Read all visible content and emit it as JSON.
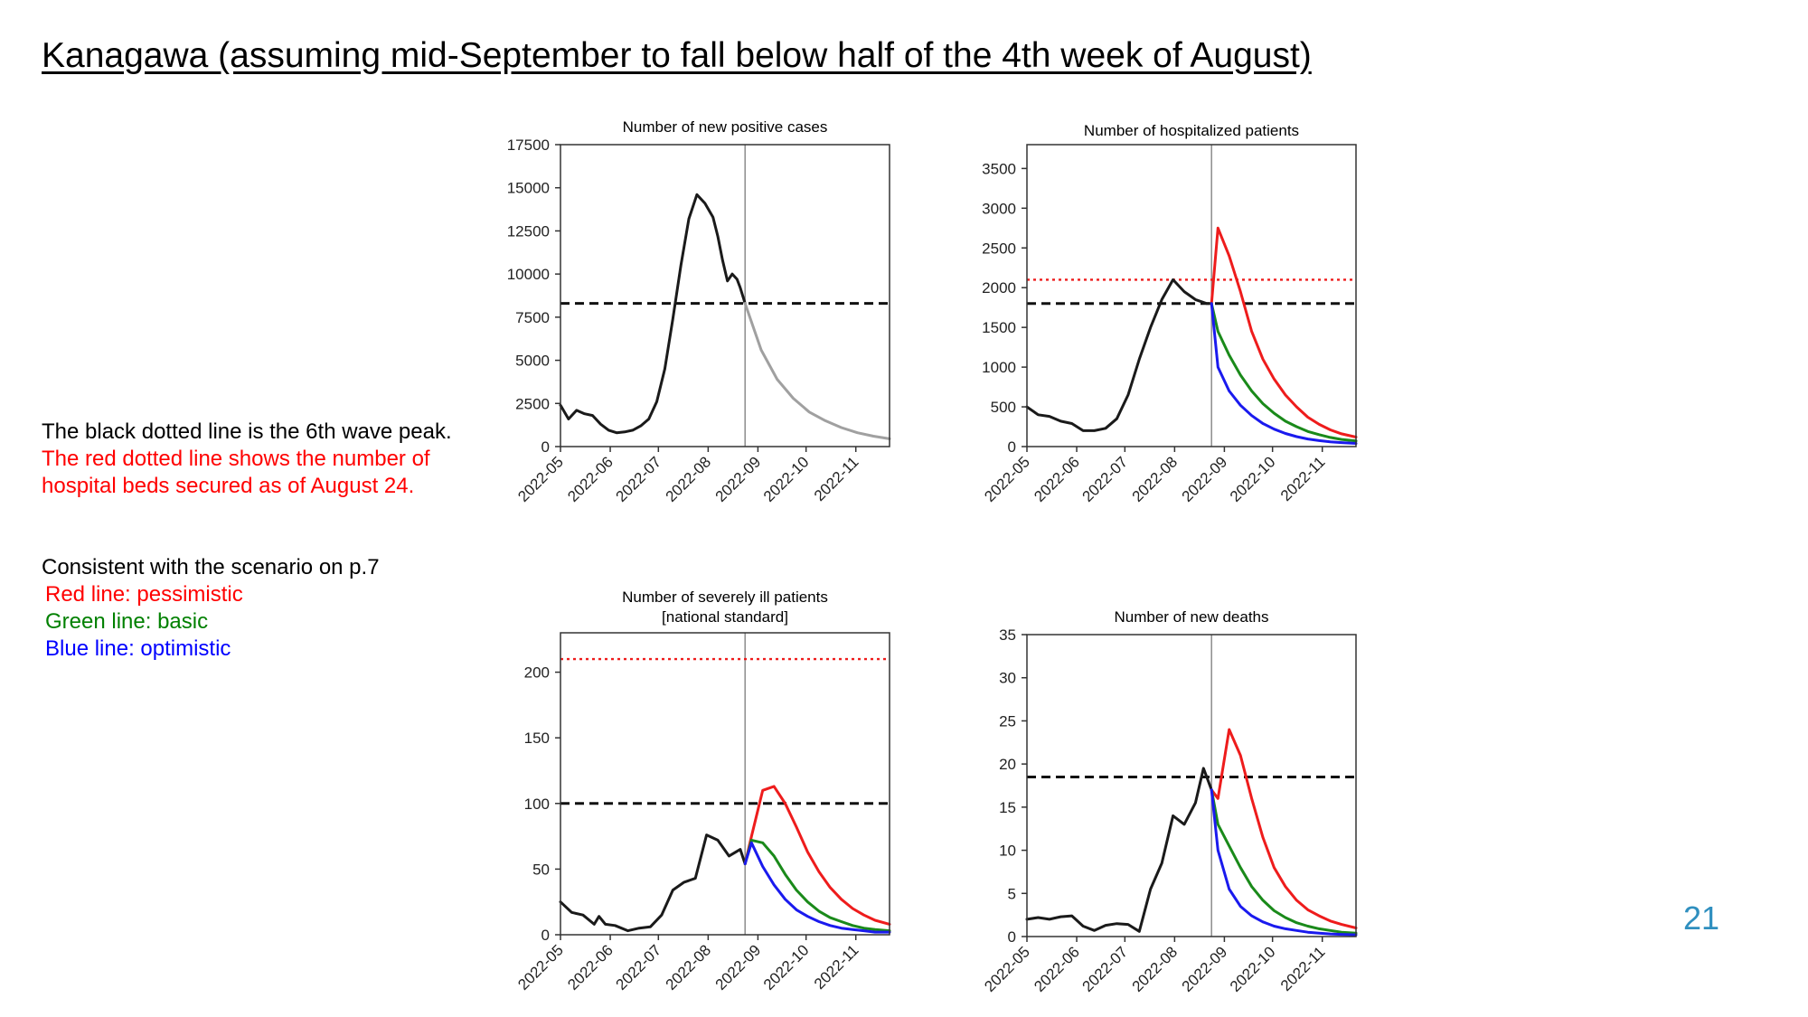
{
  "slide": {
    "title": "Kanagawa (assuming mid-September to fall below half of the 4th week of August)",
    "page_number": "21"
  },
  "notes": {
    "line1": "The black dotted line is the 6th wave peak.",
    "line2": "The red dotted line shows the number of",
    "line3": "hospital beds secured as of August 24.",
    "scenario_title": "Consistent with the scenario on p.7",
    "scenario_red": "Red line: pessimistic",
    "scenario_green": "Green line: basic",
    "scenario_blue": "Blue line: optimistic"
  },
  "colors": {
    "actual": "#1a1a1a",
    "projection_gray": "#a0a0a0",
    "pessimistic": "#ee1c1c",
    "basic": "#1a8a1a",
    "optimistic": "#1a1aee",
    "reference_gray": "#8c8c8c",
    "scenario_red_text": "#ff0000",
    "scenario_green_text": "#008000",
    "scenario_blue_text": "#0000ff"
  },
  "chart_data": [
    {
      "id": "new-cases",
      "type": "line",
      "title": "Number of new positive cases",
      "x_ticks": [
        "2022-05",
        "2022-06",
        "2022-07",
        "2022-08",
        "2022-09",
        "2022-10",
        "2022-11"
      ],
      "x_tick_values": [
        0,
        31,
        61,
        92,
        123,
        153,
        184
      ],
      "x_range": [
        0,
        205
      ],
      "ylim": [
        0,
        17500
      ],
      "y_ticks": [
        0,
        2500,
        5000,
        7500,
        10000,
        12500,
        15000,
        17500
      ],
      "reference_date": "2022-08-24",
      "reference_x": 115,
      "hlines": [
        {
          "label": "6th wave peak",
          "value": 8300,
          "style": "black-dashed"
        }
      ],
      "series": [
        {
          "role": "actual",
          "color_key": "actual",
          "x": [
            0,
            5,
            10,
            15,
            20,
            25,
            30,
            35,
            40,
            45,
            50,
            55,
            60,
            65,
            70,
            75,
            80,
            85,
            90,
            95,
            98,
            101,
            104,
            107,
            110,
            112,
            115
          ],
          "y": [
            2400,
            1600,
            2100,
            1900,
            1800,
            1300,
            950,
            800,
            850,
            950,
            1200,
            1600,
            2600,
            4500,
            7400,
            10500,
            13200,
            14600,
            14100,
            13300,
            12200,
            10800,
            9600,
            10000,
            9700,
            9200,
            8300
          ]
        },
        {
          "role": "projection",
          "color_key": "projection_gray",
          "x": [
            115,
            125,
            135,
            145,
            155,
            165,
            175,
            185,
            195,
            205
          ],
          "y": [
            8300,
            5600,
            3900,
            2800,
            2000,
            1500,
            1100,
            800,
            600,
            450
          ]
        }
      ]
    },
    {
      "id": "hospitalized",
      "type": "line",
      "title": "Number of hospitalized patients",
      "x_ticks": [
        "2022-05",
        "2022-06",
        "2022-07",
        "2022-08",
        "2022-09",
        "2022-10",
        "2022-11"
      ],
      "x_tick_values": [
        0,
        31,
        61,
        92,
        123,
        153,
        184
      ],
      "x_range": [
        0,
        205
      ],
      "ylim": [
        0,
        3800
      ],
      "y_ticks": [
        0,
        500,
        1000,
        1500,
        2000,
        2500,
        3000,
        3500
      ],
      "reference_date": "2022-08-24",
      "reference_x": 115,
      "hlines": [
        {
          "label": "6th wave peak",
          "value": 1800,
          "style": "black-dashed"
        },
        {
          "label": "hospital beds secured as of August 24",
          "value": 2100,
          "style": "red-dotted"
        }
      ],
      "series": [
        {
          "role": "actual",
          "color_key": "actual",
          "x": [
            0,
            7,
            14,
            21,
            28,
            35,
            42,
            49,
            56,
            63,
            70,
            77,
            84,
            91,
            98,
            105,
            112,
            115
          ],
          "y": [
            500,
            400,
            380,
            320,
            290,
            200,
            200,
            230,
            350,
            650,
            1100,
            1500,
            1850,
            2100,
            1950,
            1850,
            1800,
            1800
          ]
        },
        {
          "role": "pessimistic",
          "color_key": "pessimistic",
          "x": [
            115,
            119,
            126,
            133,
            140,
            147,
            154,
            161,
            168,
            175,
            182,
            189,
            196,
            205
          ],
          "y": [
            1800,
            2750,
            2400,
            1950,
            1450,
            1100,
            850,
            650,
            500,
            370,
            280,
            210,
            160,
            120
          ]
        },
        {
          "role": "basic",
          "color_key": "basic",
          "x": [
            115,
            119,
            126,
            133,
            140,
            147,
            154,
            161,
            168,
            175,
            182,
            189,
            196,
            205
          ],
          "y": [
            1800,
            1450,
            1150,
            900,
            700,
            540,
            420,
            320,
            250,
            190,
            150,
            115,
            90,
            70
          ]
        },
        {
          "role": "optimistic",
          "color_key": "optimistic",
          "x": [
            115,
            119,
            126,
            133,
            140,
            147,
            154,
            161,
            168,
            175,
            182,
            189,
            196,
            205
          ],
          "y": [
            1800,
            1000,
            700,
            520,
            390,
            290,
            220,
            165,
            125,
            95,
            75,
            60,
            50,
            40
          ]
        }
      ]
    },
    {
      "id": "severely-ill",
      "type": "line",
      "title": "Number of severely ill patients",
      "subtitle": "[national standard]",
      "x_ticks": [
        "2022-05",
        "2022-06",
        "2022-07",
        "2022-08",
        "2022-09",
        "2022-10",
        "2022-11"
      ],
      "x_tick_values": [
        0,
        31,
        61,
        92,
        123,
        153,
        184
      ],
      "x_range": [
        0,
        205
      ],
      "ylim": [
        0,
        230
      ],
      "y_ticks": [
        0,
        50,
        100,
        150,
        200
      ],
      "reference_date": "2022-08-24",
      "reference_x": 115,
      "hlines": [
        {
          "label": "6th wave peak",
          "value": 100,
          "style": "black-dashed"
        },
        {
          "label": "hospital beds secured as of August 24",
          "value": 210,
          "style": "red-dotted"
        }
      ],
      "series": [
        {
          "role": "actual",
          "color_key": "actual",
          "x": [
            0,
            7,
            14,
            21,
            24,
            28,
            34,
            42,
            49,
            56,
            63,
            70,
            77,
            84,
            91,
            98,
            105,
            112,
            115
          ],
          "y": [
            25,
            17,
            15,
            8,
            14,
            8,
            7,
            3,
            5,
            6,
            15,
            34,
            40,
            43,
            76,
            72,
            60,
            65,
            54
          ]
        },
        {
          "role": "pessimistic",
          "color_key": "pessimistic",
          "x": [
            115,
            119,
            126,
            133,
            140,
            147,
            154,
            161,
            168,
            175,
            182,
            189,
            196,
            205
          ],
          "y": [
            54,
            75,
            110,
            113,
            100,
            82,
            63,
            48,
            36,
            27,
            20,
            15,
            11,
            8
          ]
        },
        {
          "role": "basic",
          "color_key": "basic",
          "x": [
            115,
            119,
            126,
            133,
            140,
            147,
            154,
            161,
            168,
            175,
            182,
            189,
            196,
            205
          ],
          "y": [
            54,
            72,
            70,
            60,
            46,
            34,
            25,
            18,
            13,
            10,
            7,
            5,
            4,
            3
          ]
        },
        {
          "role": "optimistic",
          "color_key": "optimistic",
          "x": [
            115,
            119,
            126,
            133,
            140,
            147,
            154,
            161,
            168,
            175,
            182,
            189,
            196,
            205
          ],
          "y": [
            54,
            70,
            52,
            38,
            27,
            19,
            14,
            10,
            7,
            5,
            4,
            3,
            2,
            2
          ]
        }
      ]
    },
    {
      "id": "new-deaths",
      "type": "line",
      "title": "Number of new deaths",
      "x_ticks": [
        "2022-05",
        "2022-06",
        "2022-07",
        "2022-08",
        "2022-09",
        "2022-10",
        "2022-11"
      ],
      "x_tick_values": [
        0,
        31,
        61,
        92,
        123,
        153,
        184
      ],
      "x_range": [
        0,
        205
      ],
      "ylim": [
        0,
        35
      ],
      "y_ticks": [
        0,
        5,
        10,
        15,
        20,
        25,
        30,
        35
      ],
      "reference_date": "2022-08-24",
      "reference_x": 115,
      "hlines": [
        {
          "label": "6th wave peak",
          "value": 18.5,
          "style": "black-dashed"
        }
      ],
      "series": [
        {
          "role": "actual",
          "color_key": "actual",
          "x": [
            0,
            7,
            14,
            21,
            28,
            35,
            42,
            49,
            56,
            63,
            70,
            77,
            84,
            91,
            98,
            105,
            110,
            115
          ],
          "y": [
            2.0,
            2.2,
            2.0,
            2.3,
            2.4,
            1.2,
            0.7,
            1.3,
            1.5,
            1.4,
            0.6,
            5.5,
            8.5,
            14.0,
            13.0,
            15.5,
            19.5,
            17.0
          ]
        },
        {
          "role": "pessimistic",
          "color_key": "pessimistic",
          "x": [
            115,
            119,
            126,
            133,
            140,
            147,
            154,
            161,
            168,
            175,
            182,
            189,
            196,
            205
          ],
          "y": [
            17.0,
            16.0,
            24.0,
            21.0,
            16.0,
            11.5,
            8.0,
            5.8,
            4.2,
            3.1,
            2.4,
            1.8,
            1.4,
            1.0
          ]
        },
        {
          "role": "basic",
          "color_key": "basic",
          "x": [
            115,
            119,
            126,
            133,
            140,
            147,
            154,
            161,
            168,
            175,
            182,
            189,
            196,
            205
          ],
          "y": [
            17.0,
            13.0,
            10.5,
            8.0,
            5.8,
            4.2,
            3.0,
            2.2,
            1.6,
            1.2,
            0.9,
            0.7,
            0.5,
            0.4
          ]
        },
        {
          "role": "optimistic",
          "color_key": "optimistic",
          "x": [
            115,
            119,
            126,
            133,
            140,
            147,
            154,
            161,
            168,
            175,
            182,
            189,
            196,
            205
          ],
          "y": [
            17.0,
            10.0,
            5.5,
            3.5,
            2.4,
            1.7,
            1.2,
            0.9,
            0.7,
            0.5,
            0.4,
            0.3,
            0.25,
            0.2
          ]
        }
      ]
    }
  ]
}
